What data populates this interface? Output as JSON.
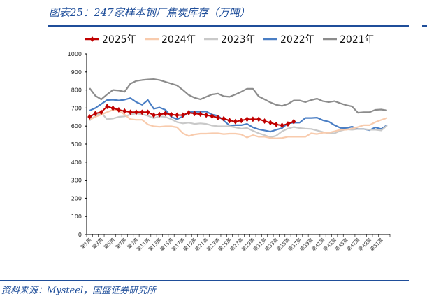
{
  "header": {
    "title": "图表25：247家样本钢厂焦炭库存（万吨）"
  },
  "footer": {
    "source": "资料来源：Mysteel，国盛证券研究所"
  },
  "chart_data": {
    "type": "line",
    "title": "247家样本钢厂焦炭库存（万吨）",
    "xlabel": "",
    "ylabel": "",
    "ylim": [
      0,
      1000
    ],
    "yticks": [
      "0",
      "100",
      "200",
      "300",
      "400",
      "500",
      "600",
      "700",
      "800",
      "900",
      "1000"
    ],
    "x_labels": [
      "第1周",
      "第3周",
      "第5周",
      "第7周",
      "第9周",
      "第11周",
      "第13周",
      "第15周",
      "第17周",
      "第19周",
      "第21周",
      "第23周",
      "第25周",
      "第27周",
      "第29周",
      "第31周",
      "第33周",
      "第35周",
      "第37周",
      "第39周",
      "第41周",
      "第43周",
      "第45周",
      "第47周",
      "第49周",
      "第51周"
    ],
    "n_weeks": 52,
    "legend_position": "top",
    "series": [
      {
        "name": "2025年",
        "color": "#c00000",
        "marker": "diamond",
        "values": [
          651,
          670,
          677,
          709,
          699,
          690,
          683,
          677,
          677,
          677,
          677,
          661,
          664,
          670,
          664,
          661,
          661,
          674,
          670,
          666,
          661,
          655,
          647,
          641,
          631,
          625,
          631,
          638,
          638,
          638,
          628,
          619,
          609,
          604,
          612,
          625
        ]
      },
      {
        "name": "2024年",
        "color": "#f8cbad",
        "values": [
          635,
          651,
          664,
          677,
          690,
          687,
          664,
          638,
          635,
          635,
          609,
          599,
          596,
          599,
          599,
          593,
          560,
          545,
          554,
          558,
          558,
          560,
          560,
          556,
          558,
          558,
          554,
          537,
          550,
          541,
          541,
          534,
          532,
          534,
          541,
          541,
          541,
          541,
          560,
          556,
          563,
          563,
          571,
          580,
          580,
          586,
          595,
          605,
          605,
          622,
          634,
          645
        ]
      },
      {
        "name": "2023年",
        "color": "#c9c9c9",
        "values": [
          631,
          657,
          673,
          638,
          642,
          651,
          654,
          664,
          670,
          666,
          657,
          644,
          654,
          651,
          638,
          622,
          615,
          619,
          612,
          615,
          612,
          603,
          599,
          599,
          599,
          593,
          586,
          589,
          574,
          560,
          550,
          538,
          547,
          571,
          586,
          595,
          589,
          586,
          584,
          576,
          567,
          560,
          560,
          574,
          582,
          580,
          584,
          584,
          580,
          580,
          576,
          603
        ]
      },
      {
        "name": "2022年",
        "color": "#4a7ec4",
        "values": [
          686,
          700,
          722,
          744,
          746,
          742,
          746,
          755,
          733,
          718,
          744,
          696,
          703,
          690,
          651,
          638,
          654,
          677,
          680,
          680,
          681,
          664,
          657,
          631,
          603,
          605,
          605,
          612,
          593,
          582,
          576,
          569,
          580,
          589,
          615,
          619,
          619,
          645,
          645,
          647,
          632,
          625,
          605,
          590,
          589,
          597,
          584,
          584,
          577,
          593,
          584,
          605
        ]
      },
      {
        "name": "2021年",
        "color": "#8c8c8c",
        "values": [
          810,
          768,
          748,
          775,
          800,
          797,
          790,
          835,
          850,
          855,
          858,
          860,
          855,
          845,
          835,
          825,
          800,
          772,
          757,
          748,
          762,
          775,
          780,
          765,
          762,
          775,
          790,
          807,
          807,
          764,
          748,
          731,
          718,
          712,
          722,
          742,
          742,
          733,
          744,
          752,
          738,
          733,
          738,
          726,
          716,
          709,
          674,
          677,
          677,
          690,
          692,
          687
        ]
      }
    ]
  }
}
